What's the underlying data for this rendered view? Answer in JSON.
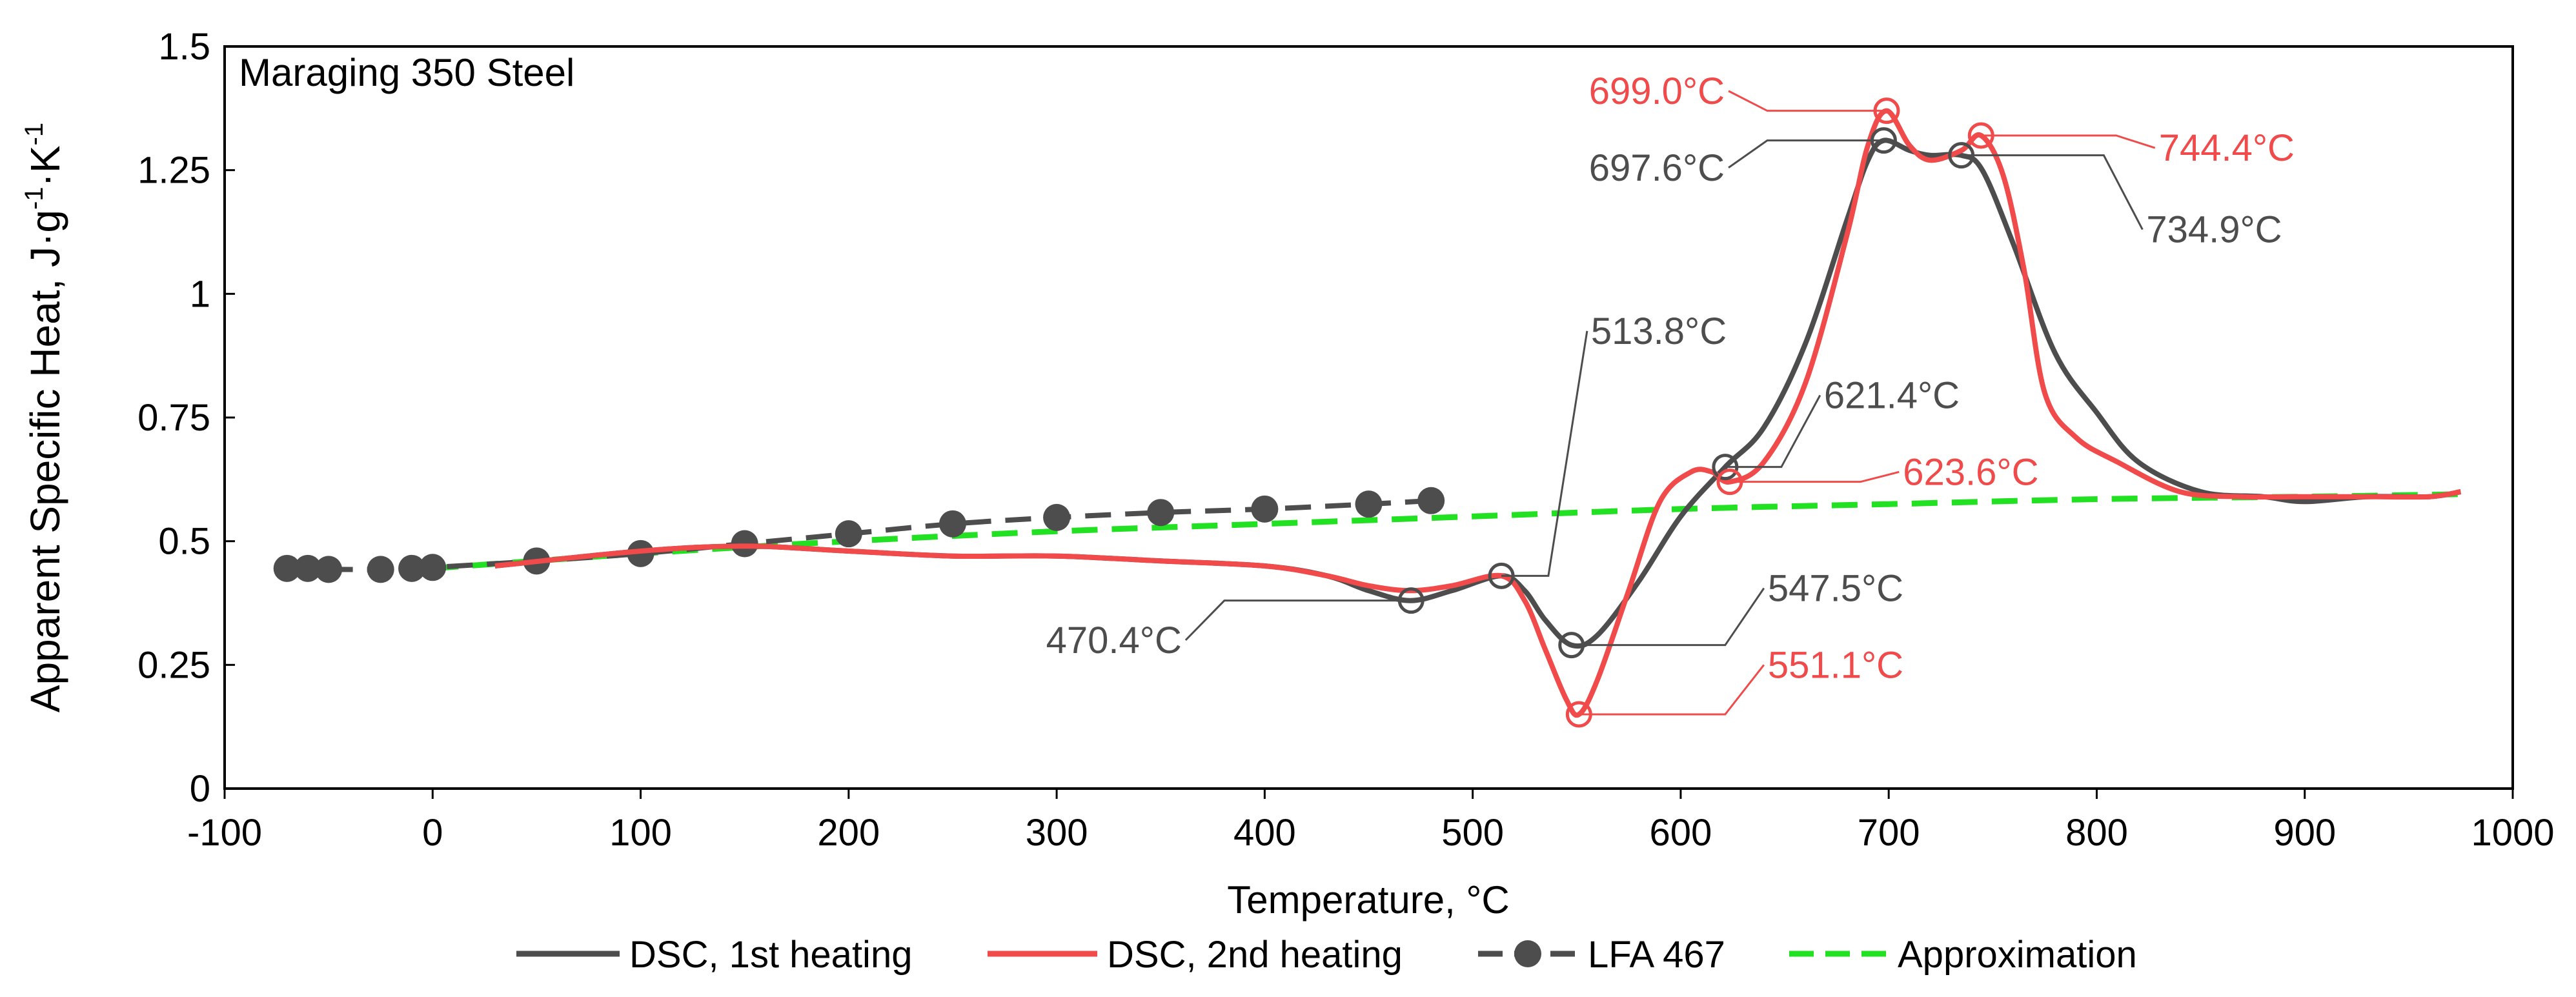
{
  "chart_data": {
    "type": "line",
    "title": "Maraging 350 Steel",
    "xlabel": "Temperature, °C",
    "ylabel": {
      "base": "Apparent Specific Heat, J",
      "dot1": "·",
      "g": "g",
      "exp1": "-1",
      "dot2": "·",
      "K": "K",
      "exp2": "-1"
    },
    "xlim": [
      -100,
      1000
    ],
    "ylim": [
      0,
      1.5
    ],
    "xticks": [
      -100,
      0,
      100,
      200,
      300,
      400,
      500,
      600,
      700,
      800,
      900,
      1000
    ],
    "yticks": [
      0,
      0.25,
      0.5,
      0.75,
      1,
      1.25,
      1.5
    ],
    "xtick_labels": [
      "-100",
      "0",
      "100",
      "200",
      "300",
      "400",
      "500",
      "600",
      "700",
      "800",
      "900",
      "1000"
    ],
    "ytick_labels": [
      "0",
      "0.25",
      "0.5",
      "0.75",
      "1",
      "1.25",
      "1.5"
    ],
    "colors": {
      "dsc1": "#4d4d4d",
      "dsc2": "#f04a4a",
      "lfa": "#4d4d4d",
      "approx": "#22e022",
      "frame": "#000000"
    },
    "series": [
      {
        "name": "DSC, 1st heating",
        "style": "solid",
        "x": [
          30,
          100,
          150,
          200,
          250,
          300,
          350,
          400,
          430,
          450,
          470,
          490,
          513.8,
          525,
          535,
          547.5,
          560,
          580,
          600,
          621.4,
          640,
          660,
          680,
          690,
          697.6,
          710,
          720,
          734.9,
          745,
          760,
          780,
          800,
          820,
          850,
          880,
          900,
          930,
          960,
          975
        ],
        "y": [
          0.45,
          0.48,
          0.49,
          0.48,
          0.47,
          0.47,
          0.46,
          0.45,
          0.43,
          0.4,
          0.38,
          0.4,
          0.43,
          0.4,
          0.34,
          0.29,
          0.31,
          0.42,
          0.55,
          0.65,
          0.73,
          0.9,
          1.15,
          1.27,
          1.31,
          1.29,
          1.28,
          1.28,
          1.25,
          1.1,
          0.88,
          0.76,
          0.66,
          0.6,
          0.59,
          0.58,
          0.59,
          0.59,
          0.6
        ]
      },
      {
        "name": "DSC, 2nd heating",
        "style": "solid",
        "x": [
          30,
          100,
          150,
          200,
          250,
          300,
          350,
          400,
          430,
          450,
          470,
          490,
          513.8,
          525,
          535,
          545,
          551.1,
          560,
          575,
          590,
          605,
          615,
          623.6,
          640,
          660,
          680,
          690,
          699.0,
          710,
          720,
          735,
          744.4,
          755,
          765,
          775,
          790,
          810,
          840,
          870,
          900,
          930,
          960,
          975
        ],
        "y": [
          0.45,
          0.48,
          0.49,
          0.48,
          0.47,
          0.47,
          0.46,
          0.45,
          0.43,
          0.41,
          0.4,
          0.41,
          0.43,
          0.38,
          0.28,
          0.18,
          0.15,
          0.22,
          0.4,
          0.58,
          0.64,
          0.64,
          0.62,
          0.66,
          0.82,
          1.12,
          1.3,
          1.37,
          1.3,
          1.27,
          1.29,
          1.32,
          1.24,
          1.05,
          0.8,
          0.71,
          0.66,
          0.6,
          0.59,
          0.59,
          0.59,
          0.59,
          0.6
        ]
      },
      {
        "name": "LFA 467",
        "style": "dashed-markers",
        "x": [
          -70,
          -60,
          -50,
          -25,
          -10,
          0,
          50,
          100,
          150,
          200,
          250,
          300,
          350,
          400,
          450,
          480
        ],
        "y": [
          0.445,
          0.445,
          0.443,
          0.443,
          0.445,
          0.447,
          0.46,
          0.475,
          0.495,
          0.515,
          0.535,
          0.548,
          0.558,
          0.565,
          0.575,
          0.582
        ]
      },
      {
        "name": "Approximation",
        "style": "dashed",
        "x": [
          0,
          100,
          200,
          300,
          400,
          500,
          600,
          700,
          800,
          900,
          975
        ],
        "y": [
          0.445,
          0.475,
          0.5,
          0.52,
          0.535,
          0.55,
          0.565,
          0.575,
          0.585,
          0.59,
          0.595
        ]
      }
    ],
    "annotations": [
      {
        "text": "470.4°C",
        "series": "DSC, 1st heating",
        "x": 470.4,
        "y": 0.38,
        "label_x": 362,
        "label_y": 0.3,
        "color": "#4d4d4d",
        "anchor": "end"
      },
      {
        "text": "513.8°C",
        "series": "DSC, 1st heating",
        "x": 513.8,
        "y": 0.43,
        "label_x": 555,
        "label_y": 0.925,
        "color": "#4d4d4d",
        "anchor": "start"
      },
      {
        "text": "547.5°C",
        "series": "DSC, 1st heating",
        "x": 547.5,
        "y": 0.29,
        "label_x": 640,
        "label_y": 0.405,
        "color": "#4d4d4d",
        "anchor": "start"
      },
      {
        "text": "551.1°C",
        "series": "DSC, 2nd heating",
        "x": 551.1,
        "y": 0.15,
        "label_x": 640,
        "label_y": 0.25,
        "color": "#f04a4a",
        "anchor": "start"
      },
      {
        "text": "621.4°C",
        "series": "DSC, 1st heating",
        "x": 621.4,
        "y": 0.65,
        "label_x": 667,
        "label_y": 0.795,
        "color": "#4d4d4d",
        "anchor": "start"
      },
      {
        "text": "623.6°C",
        "series": "DSC, 2nd heating",
        "x": 623.6,
        "y": 0.62,
        "label_x": 705,
        "label_y": 0.64,
        "color": "#f04a4a",
        "anchor": "start"
      },
      {
        "text": "697.6°C",
        "series": "DSC, 1st heating",
        "x": 697.6,
        "y": 1.31,
        "label_x": 623,
        "label_y": 1.255,
        "color": "#4d4d4d",
        "anchor": "end"
      },
      {
        "text": "699.0°C",
        "series": "DSC, 2nd heating",
        "x": 699.0,
        "y": 1.37,
        "label_x": 623,
        "label_y": 1.41,
        "color": "#f04a4a",
        "anchor": "end"
      },
      {
        "text": "734.9°C",
        "series": "DSC, 1st heating",
        "x": 734.9,
        "y": 1.28,
        "label_x": 822,
        "label_y": 1.13,
        "color": "#4d4d4d",
        "anchor": "start"
      },
      {
        "text": "744.4°C",
        "series": "DSC, 2nd heating",
        "x": 744.4,
        "y": 1.32,
        "label_x": 828,
        "label_y": 1.295,
        "color": "#f04a4a",
        "anchor": "start"
      }
    ],
    "legend": {
      "placement": "bottom",
      "entries": [
        "DSC, 1st heating",
        "DSC, 2nd heating",
        "LFA 467",
        "Approximation"
      ]
    }
  }
}
